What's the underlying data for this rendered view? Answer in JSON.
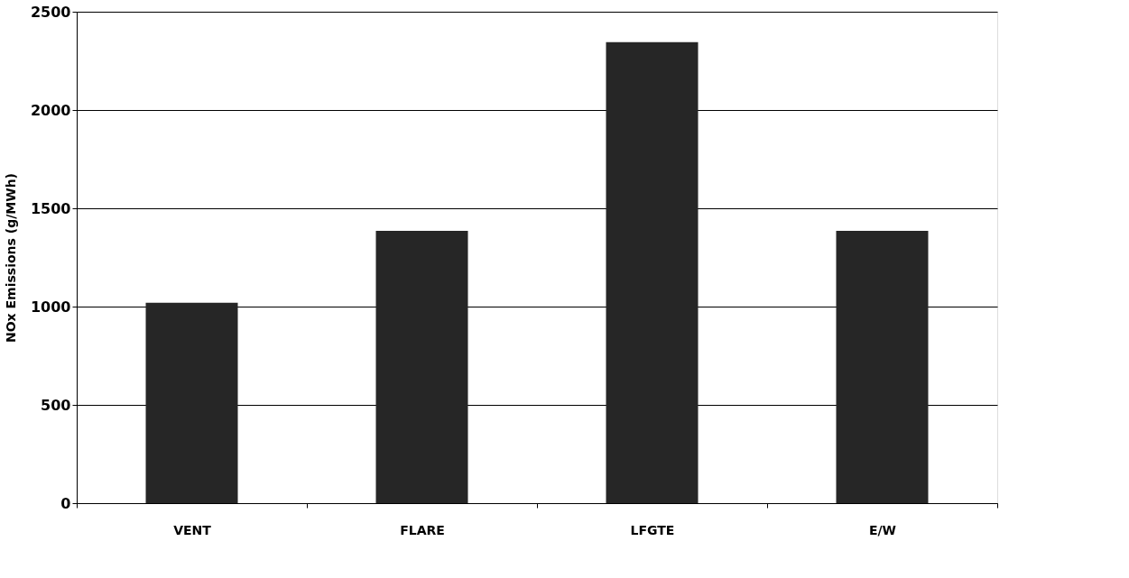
{
  "chart_data": {
    "type": "bar",
    "ylabel": "NOx Emissions (g/MWh)",
    "categories": [
      "VENT",
      "FLARE",
      "LFGTE",
      "E/W"
    ],
    "values": [
      1020,
      1385,
      2345,
      1385
    ],
    "color": "#262626",
    "ylim": [
      0,
      2500
    ],
    "yticks": [
      0,
      500,
      1000,
      1500,
      2000,
      2500
    ],
    "grid": "y"
  }
}
